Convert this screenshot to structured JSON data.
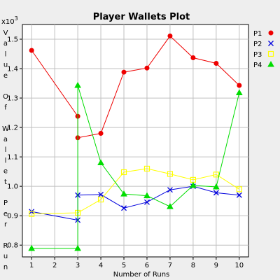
{
  "chart_data": {
    "type": "line",
    "title": "Player Wallets Plot",
    "xlabel": "Number of Runs",
    "ylabel": "Value Of Wallet Per Run",
    "ylabel_words": [
      "Value",
      "Of",
      "Wallet",
      "Per",
      "Run"
    ],
    "y_multiplier_label": "x10",
    "y_multiplier_exponent": "3",
    "xlim": [
      0.6,
      10.4
    ],
    "ylim": [
      0.76,
      1.55
    ],
    "x_ticks": [
      1,
      2,
      3,
      4,
      5,
      6,
      7,
      8,
      9,
      10
    ],
    "y_ticks": [
      0.8,
      0.9,
      1.0,
      1.1,
      1.2,
      1.3,
      1.4,
      1.5
    ],
    "y_tick_labels": [
      "0.8",
      "0.9",
      "1.0",
      "1.1",
      "1.2",
      "1.3",
      "1.4",
      "1.5"
    ],
    "grid": true,
    "legend_position": "right",
    "series": [
      {
        "name": "P1",
        "color": "#ee0000",
        "marker": "circle",
        "x": [
          1,
          3,
          3,
          4,
          5,
          6,
          7,
          8,
          9,
          10
        ],
        "y": [
          1.462,
          1.238,
          1.165,
          1.18,
          1.388,
          1.402,
          1.511,
          1.437,
          1.418,
          1.343
        ]
      },
      {
        "name": "P2",
        "color": "#0000dd",
        "marker": "x",
        "x": [
          1,
          3,
          3,
          4,
          5,
          6,
          7,
          8,
          9,
          10
        ],
        "y": [
          0.914,
          0.885,
          0.97,
          0.972,
          0.926,
          0.946,
          0.988,
          1.0,
          0.978,
          0.97
        ]
      },
      {
        "name": "P3",
        "color": "#ffff00",
        "marker": "square",
        "x": [
          1,
          3,
          4,
          5,
          6,
          7,
          8,
          9,
          10
        ],
        "y": [
          0.906,
          0.91,
          0.955,
          1.048,
          1.06,
          1.042,
          1.022,
          1.04,
          0.99
        ]
      },
      {
        "name": "P4",
        "color": "#00dd00",
        "marker": "triangle",
        "x": [
          1,
          3,
          3,
          4,
          5,
          6,
          7,
          8,
          9,
          10
        ],
        "y": [
          0.789,
          0.789,
          1.343,
          1.08,
          0.974,
          0.968,
          0.931,
          1.003,
          0.998,
          1.318
        ]
      }
    ]
  }
}
